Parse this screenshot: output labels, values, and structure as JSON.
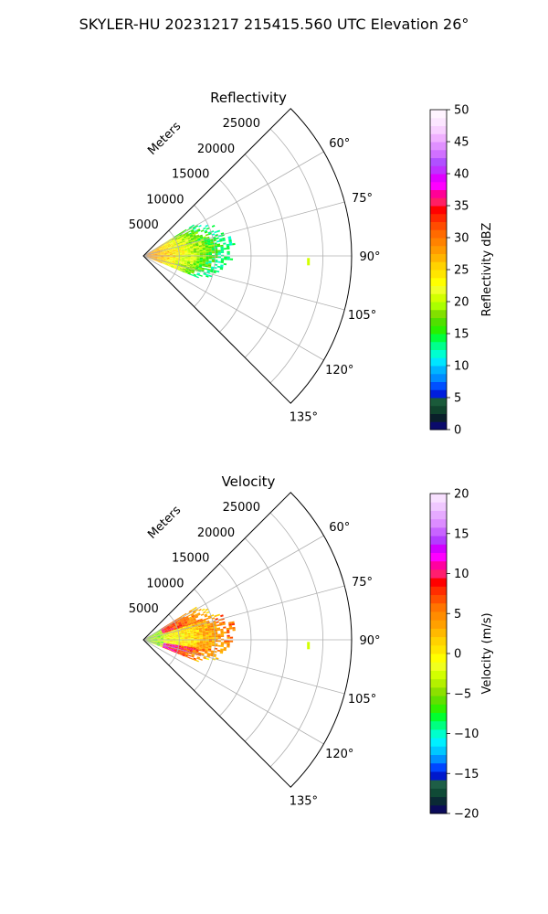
{
  "figure": {
    "title": "SKYLER-HU  20231217  215415.560 UTC Elevation 26°"
  },
  "chart_data": [
    {
      "type": "heatmap",
      "subtype": "polar-sector",
      "title": "Reflectivity",
      "radial_label": "Meters",
      "radial_ticks": [
        5000,
        10000,
        15000,
        20000,
        25000
      ],
      "radial_tick_labels": [
        "5000",
        "10000",
        "15000",
        "20000",
        "25000"
      ],
      "r_max": 29000,
      "theta_range_deg": [
        45,
        135
      ],
      "theta_ticks": [
        60,
        75,
        90,
        105,
        120,
        135
      ],
      "theta_tick_labels": [
        "60°",
        "75°",
        "90°",
        "105°",
        "120°",
        "135°"
      ],
      "grid": true,
      "colorbar": {
        "label": "Reflectivity dBZ",
        "range": [
          0,
          50
        ],
        "ticks": [
          0,
          5,
          10,
          15,
          20,
          25,
          30,
          35,
          40,
          45,
          50
        ],
        "tick_labels": [
          "0",
          "5",
          "10",
          "15",
          "20",
          "25",
          "30",
          "35",
          "40",
          "45",
          "50"
        ]
      },
      "echo_region": {
        "theta_range_deg": [
          58,
          112
        ],
        "range_m": [
          0,
          13000
        ],
        "typical_value_near": 30,
        "typical_value_mid": 20,
        "typical_value_far": 12
      },
      "isolated_echo": {
        "theta_deg": 92,
        "range_m": 23000,
        "value": 20
      }
    },
    {
      "type": "heatmap",
      "subtype": "polar-sector",
      "title": "Velocity",
      "radial_label": "Meters",
      "radial_ticks": [
        5000,
        10000,
        15000,
        20000,
        25000
      ],
      "radial_tick_labels": [
        "5000",
        "10000",
        "15000",
        "20000",
        "25000"
      ],
      "r_max": 29000,
      "theta_range_deg": [
        45,
        135
      ],
      "theta_ticks": [
        60,
        75,
        90,
        105,
        120,
        135
      ],
      "theta_tick_labels": [
        "60°",
        "75°",
        "90°",
        "105°",
        "120°",
        "135°"
      ],
      "grid": true,
      "colorbar": {
        "label": "Velocity (m/s)",
        "range": [
          -20,
          20
        ],
        "ticks": [
          -20,
          -15,
          -10,
          -5,
          0,
          5,
          10,
          15,
          20
        ],
        "tick_labels": [
          "−20",
          "−15",
          "−10",
          "−5",
          "0",
          "5",
          "10",
          "15",
          "20"
        ]
      },
      "echo_region": {
        "theta_range_deg": [
          58,
          112
        ],
        "range_m": [
          0,
          13000
        ]
      },
      "isolated_echo": {
        "theta_deg": 92,
        "range_m": 23000,
        "value": -3
      }
    }
  ]
}
